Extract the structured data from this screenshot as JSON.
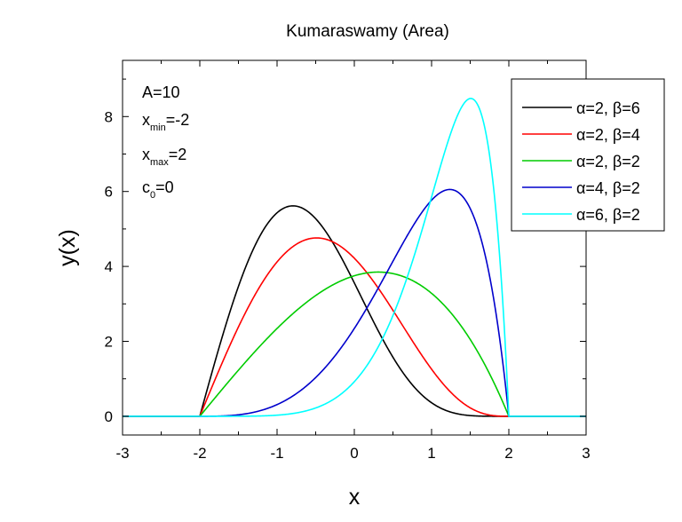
{
  "chart_data": {
    "type": "line",
    "title": "Kumaraswamy (Area)",
    "xlabel": "x",
    "ylabel": "y(x)",
    "xlim": [
      -3,
      3
    ],
    "ylim": [
      -0.5,
      9.5
    ],
    "x_ticks": [
      -3,
      -2,
      -1,
      0,
      1,
      2,
      3
    ],
    "y_ticks": [
      0,
      2,
      4,
      6,
      8
    ],
    "grid": false,
    "legend_position": "top-right",
    "parameters": {
      "a_label": "A=10",
      "xmin_prefix": "x",
      "xmin_sub": "min",
      "xmin_value": "=-2",
      "xmax_prefix": "x",
      "xmax_sub": "max",
      "xmax_value": "=2",
      "c0_prefix": "c",
      "c0_sub": "0",
      "c0_value": "=0"
    },
    "model": {
      "A": 10,
      "xmin": -2,
      "xmax": 2,
      "c0": 0
    },
    "series": [
      {
        "name": "α=2, β=6",
        "alpha": 2,
        "beta": 6,
        "color": "#000000"
      },
      {
        "name": "α=2, β=4",
        "alpha": 2,
        "beta": 4,
        "color": "#ff0000"
      },
      {
        "name": "α=2, β=2",
        "alpha": 2,
        "beta": 2,
        "color": "#00cc00"
      },
      {
        "name": "α=4, β=2",
        "alpha": 4,
        "beta": 2,
        "color": "#0000cc"
      },
      {
        "name": "α=6, β=2",
        "alpha": 6,
        "beta": 2,
        "color": "#00ffff"
      }
    ]
  }
}
